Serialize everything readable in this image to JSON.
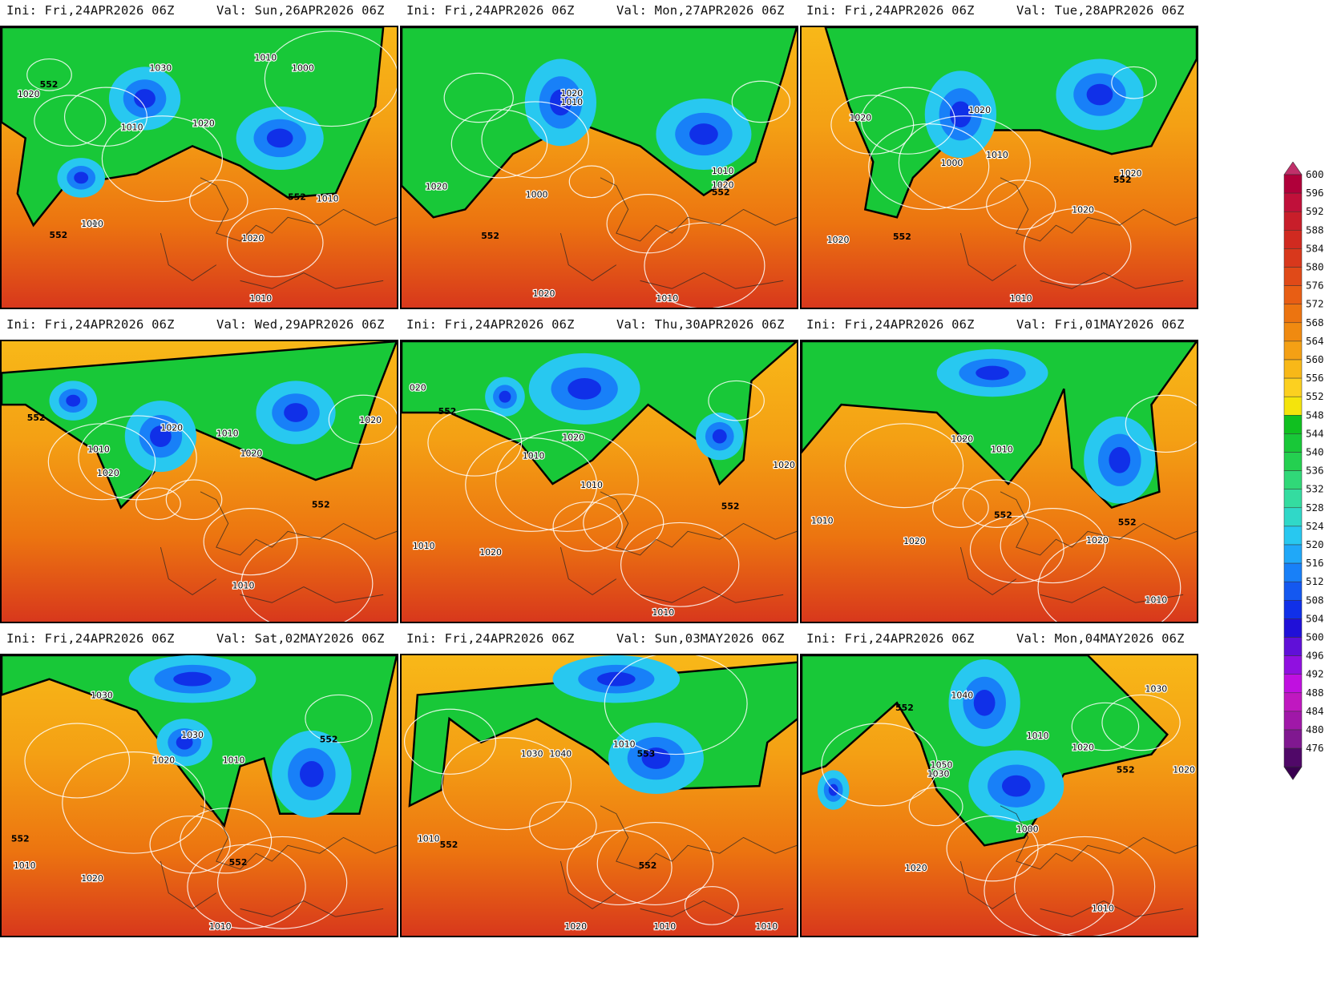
{
  "panels": [
    {
      "ini": "Ini: Fri,24APR2026 06Z",
      "val": "Val: Sun,26APR2026 06Z",
      "labels": [
        "1030",
        "1010",
        "1000",
        "1020",
        "1010",
        "1020",
        "1010",
        "1000",
        "552",
        "552",
        "552",
        "1010",
        "1020",
        "1010"
      ]
    },
    {
      "ini": "Ini: Fri,24APR2026 06Z",
      "val": "Val: Mon,27APR2026 06Z",
      "labels": [
        "1020",
        "1010",
        "1000",
        "1020",
        "552",
        "1010",
        "1020",
        "552",
        "1020",
        "1010"
      ]
    },
    {
      "ini": "Ini: Fri,24APR2026 06Z",
      "val": "Val: Tue,28APR2026 06Z",
      "labels": [
        "1020",
        "1020",
        "1010",
        "1000",
        "552",
        "1020",
        "552",
        "1020",
        "1020",
        "1010"
      ]
    },
    {
      "ini": "Ini: Fri,24APR2026 06Z",
      "val": "Val: Wed,29APR2026 06Z",
      "labels": [
        "552",
        "1020",
        "1010",
        "1010",
        "1020",
        "1020",
        "1020",
        "552",
        "1010"
      ]
    },
    {
      "ini": "Ini: Fri,24APR2026 06Z",
      "val": "Val: Thu,30APR2026 06Z",
      "labels": [
        "020",
        "552",
        "1020",
        "1010",
        "1010",
        "1020",
        "552",
        "1010",
        "1020",
        "1010"
      ]
    },
    {
      "ini": "Ini: Fri,24APR2026 06Z",
      "val": "Val: Fri,01MAY2026 06Z",
      "labels": [
        "1020",
        "1010",
        "552",
        "1010",
        "1020",
        "1020",
        "552",
        "1010"
      ]
    },
    {
      "ini": "Ini: Fri,24APR2026 06Z",
      "val": "Val: Sat,02MAY2026 06Z",
      "labels": [
        "1030",
        "1030",
        "1020",
        "1010",
        "552",
        "552",
        "552",
        "1010",
        "1020",
        "1010"
      ]
    },
    {
      "ini": "Ini: Fri,24APR2026 06Z",
      "val": "Val: Sun,03MAY2026 06Z",
      "labels": [
        "1030",
        "1040",
        "1010",
        "553",
        "552",
        "1010",
        "552",
        "1020",
        "1010",
        "1010"
      ]
    },
    {
      "ini": "Ini: Fri,24APR2026 06Z",
      "val": "Val: Mon,04MAY2026 06Z",
      "labels": [
        "1040",
        "552",
        "1050",
        "1030",
        "1010",
        "1020",
        "1030",
        "552",
        "1020",
        "1000",
        "1020",
        "1010"
      ]
    }
  ],
  "colorbar": {
    "levels": [
      "600",
      "596",
      "592",
      "588",
      "584",
      "580",
      "576",
      "572",
      "568",
      "564",
      "560",
      "556",
      "552",
      "548",
      "544",
      "540",
      "536",
      "532",
      "528",
      "524",
      "520",
      "516",
      "512",
      "508",
      "504",
      "500",
      "496",
      "492",
      "488",
      "484",
      "480",
      "476"
    ],
    "colors": [
      "#b0003a",
      "#c0103a",
      "#c81e2a",
      "#d02a20",
      "#d8381c",
      "#e04a18",
      "#e85e14",
      "#ec7410",
      "#f08a10",
      "#f4a014",
      "#f8b818",
      "#fcd020",
      "#f4e40c",
      "#10c020",
      "#18c838",
      "#24d050",
      "#30d878",
      "#34dca0",
      "#30d8c8",
      "#28c8f0",
      "#20a8f8",
      "#1880f8",
      "#1458f0",
      "#1030e8",
      "#2010d8",
      "#6010d8",
      "#9010e0",
      "#c010e0",
      "#c018c0",
      "#a018a8",
      "#801890",
      "#500868"
    ]
  }
}
